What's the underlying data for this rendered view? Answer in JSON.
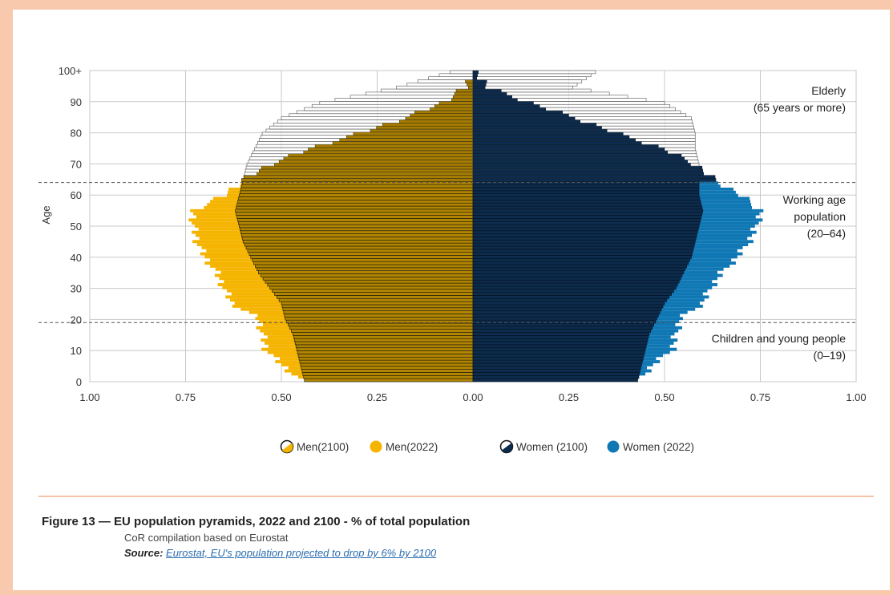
{
  "colors": {
    "men_2022": "#f5b400",
    "men_2100": "#a57c00",
    "women_2022": "#0f77b4",
    "women_2100": "#0d2b4c",
    "elderly_2100_outline": "#555555",
    "grid": "#c8c8c8",
    "frame": "#f9c9ad"
  },
  "chart_data": {
    "type": "bar",
    "orientation": "horizontal-pyramid",
    "ylabel": "Age",
    "y_ticks": [
      "0",
      "10",
      "20",
      "30",
      "40",
      "50",
      "60",
      "70",
      "80",
      "90",
      "100+"
    ],
    "x_ticks": [
      "1.00",
      "0.75",
      "0.50",
      "0.25",
      "0.00",
      "0.25",
      "0.50",
      "0.75",
      "1.00"
    ],
    "xlim": [
      -1.0,
      1.0
    ],
    "ylim": [
      0,
      100
    ],
    "ages": [
      0,
      5,
      10,
      15,
      20,
      25,
      30,
      35,
      40,
      45,
      50,
      55,
      60,
      65,
      70,
      75,
      80,
      85,
      90,
      95,
      100
    ],
    "series": [
      {
        "name": "Men(2100)",
        "side": "left",
        "values": [
          0.44,
          0.45,
          0.46,
          0.47,
          0.49,
          0.5,
          0.53,
          0.56,
          0.58,
          0.6,
          0.61,
          0.62,
          0.61,
          0.6,
          0.59,
          0.57,
          0.55,
          0.5,
          0.4,
          0.2,
          0.06
        ]
      },
      {
        "name": "Men(2022)",
        "side": "left",
        "values": [
          0.45,
          0.5,
          0.54,
          0.55,
          0.56,
          0.63,
          0.65,
          0.67,
          0.7,
          0.72,
          0.73,
          0.73,
          0.65,
          0.6,
          0.53,
          0.43,
          0.3,
          0.18,
          0.08,
          0.02,
          0.0
        ]
      },
      {
        "name": "Women (2100)",
        "side": "right",
        "values": [
          0.43,
          0.44,
          0.45,
          0.46,
          0.48,
          0.5,
          0.53,
          0.55,
          0.57,
          0.58,
          0.59,
          0.6,
          0.59,
          0.59,
          0.59,
          0.58,
          0.58,
          0.57,
          0.5,
          0.26,
          0.32
        ]
      },
      {
        "name": "Women (2022)",
        "side": "right",
        "values": [
          0.43,
          0.47,
          0.52,
          0.53,
          0.54,
          0.6,
          0.62,
          0.65,
          0.69,
          0.72,
          0.74,
          0.75,
          0.7,
          0.63,
          0.58,
          0.5,
          0.38,
          0.27,
          0.15,
          0.04,
          0.01
        ]
      }
    ],
    "thresholds": [
      19,
      64
    ],
    "annotations": [
      {
        "lines": [
          "Elderly",
          "(65 years or more)"
        ]
      },
      {
        "lines": [
          "Working age",
          "population",
          "(20–64)"
        ]
      },
      {
        "lines": [
          "Children and young people",
          "(0–19)"
        ]
      }
    ],
    "legend": {
      "placement": "bottom",
      "items": [
        "Men(2100)",
        "Men(2022)",
        "Women (2100)",
        "Women (2022)"
      ]
    },
    "grid": true
  },
  "caption": {
    "title": "Figure 13 — EU population pyramids, 2022 and 2100 - % of total population",
    "subtitle": "CoR compilation based on Eurostat",
    "source_label": "Source:",
    "source_link": "Eurostat, EU's population projected to drop by 6% by 2100"
  }
}
